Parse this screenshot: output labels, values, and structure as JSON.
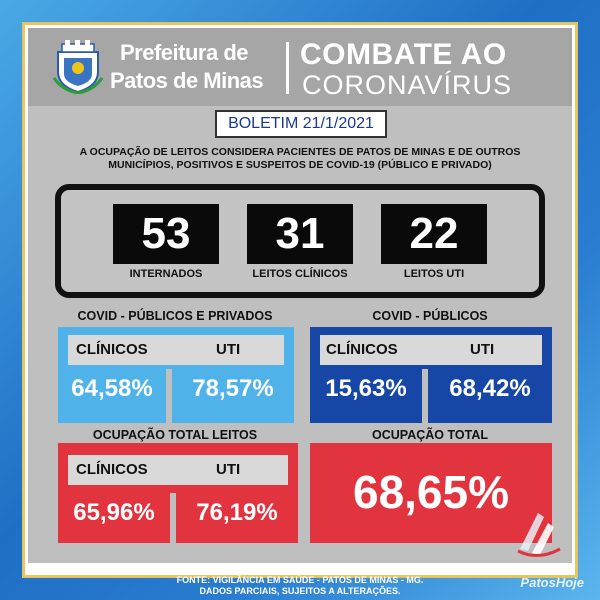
{
  "header": {
    "prefeitura_line1": "Prefeitura de",
    "prefeitura_line2": "Patos de Minas",
    "campaign_line1": "COMBATE AO",
    "campaign_line2": "CORONAVÍRUS"
  },
  "boletim": "BOLETIM 21/1/2021",
  "note_line1": "A OCUPAÇÃO DE LEITOS CONSIDERA PACIENTES DE PATOS DE MINAS E DE OUTROS",
  "note_line2": "MUNICÍPIOS, POSITIVOS E SUSPEITOS DE COVID-19 (PÚBLICO E PRIVADO)",
  "stats": [
    {
      "value": "53",
      "label": "INTERNADOS"
    },
    {
      "value": "31",
      "label": "LEITOS CLÍNICOS"
    },
    {
      "value": "22",
      "label": "LEITOS UTI"
    }
  ],
  "covid_publicos_privados": {
    "title": "COVID - PÚBLICOS E PRIVADOS",
    "col1": "CLÍNICOS",
    "col2": "UTI",
    "val1": "64,58%",
    "val2": "78,57%"
  },
  "covid_publicos": {
    "title": "COVID - PÚBLICOS",
    "col1": "CLÍNICOS",
    "col2": "UTI",
    "val1": "15,63%",
    "val2": "68,42%"
  },
  "ocupacao_total_leitos": {
    "title": "OCUPAÇÃO TOTAL LEITOS",
    "col1": "CLÍNICOS",
    "col2": "UTI",
    "val1": "65,96%",
    "val2": "76,19%"
  },
  "ocupacao_total": {
    "title": "OCUPAÇÃO TOTAL",
    "value": "68,65%"
  },
  "footer_line1": "FONTE: VIGILÂNCIA EM SAÚDE - PATOS DE MINAS - MG.",
  "footer_line2": "DADOS PARCIAIS, SUJEITOS A ALTERAÇÕES.",
  "brand": "PatosHoje",
  "colors": {
    "light_blue": "#4fb3ea",
    "dark_blue": "#1747a6",
    "red": "#e2343f",
    "black": "#0a0a0a"
  }
}
